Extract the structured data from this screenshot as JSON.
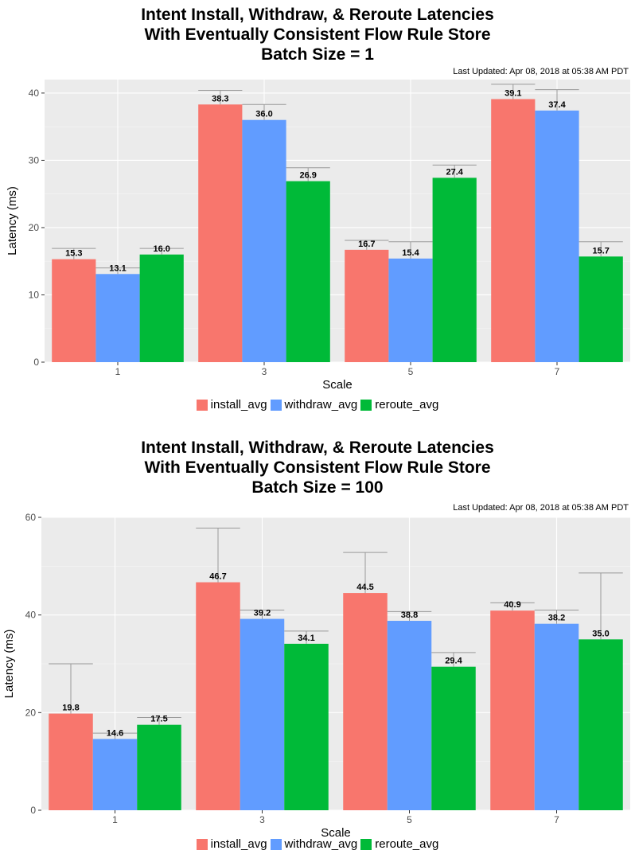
{
  "chart_data": [
    {
      "type": "bar",
      "title_lines": [
        "Intent Install, Withdraw, & Reroute Latencies",
        "With Eventually Consistent Flow Rule Store",
        "Batch Size = 1"
      ],
      "subtitle": "Last Updated: Apr 08, 2018 at 05:38 AM PDT",
      "xlabel": "Scale",
      "ylabel": "Latency (ms)",
      "ylim": [
        0,
        42
      ],
      "yticks": [
        0,
        10,
        20,
        30,
        40
      ],
      "categories": [
        "1",
        "3",
        "5",
        "7"
      ],
      "series": [
        {
          "name": "install_avg",
          "color": "#F8766D",
          "values": [
            15.3,
            38.3,
            16.7,
            39.1
          ],
          "labels": [
            "15.3",
            "38.3",
            "16.7",
            "39.1"
          ],
          "err_high": [
            16.9,
            40.4,
            18.1,
            41.3
          ]
        },
        {
          "name": "withdraw_avg",
          "color": "#619CFF",
          "values": [
            13.1,
            36.0,
            15.4,
            37.4
          ],
          "labels": [
            "13.1",
            "36.0",
            "15.4",
            "37.4"
          ],
          "err_high": [
            14.0,
            38.3,
            17.9,
            40.5
          ]
        },
        {
          "name": "reroute_avg",
          "color": "#00BA38",
          "values": [
            16.0,
            26.9,
            27.4,
            15.7
          ],
          "labels": [
            "16.0",
            "26.9",
            "27.4",
            "15.7"
          ],
          "err_high": [
            16.9,
            28.9,
            29.3,
            17.9
          ]
        }
      ],
      "grid": true,
      "legend_position": "bottom"
    },
    {
      "type": "bar",
      "title_lines": [
        "Intent Install, Withdraw, & Reroute Latencies",
        "With Eventually Consistent Flow Rule Store",
        "Batch Size = 100"
      ],
      "subtitle": "Last Updated: Apr 08, 2018 at 05:38 AM PDT",
      "xlabel": "Scale",
      "ylabel": "Latency (ms)",
      "ylim": [
        0,
        60
      ],
      "yticks": [
        0,
        20,
        40,
        60
      ],
      "categories": [
        "1",
        "3",
        "5",
        "7"
      ],
      "series": [
        {
          "name": "install_avg",
          "color": "#F8766D",
          "values": [
            19.8,
            46.7,
            44.5,
            40.9
          ],
          "labels": [
            "19.8",
            "46.7",
            "44.5",
            "40.9"
          ],
          "err_high": [
            30.0,
            57.8,
            52.8,
            42.5
          ]
        },
        {
          "name": "withdraw_avg",
          "color": "#619CFF",
          "values": [
            14.6,
            39.2,
            38.8,
            38.2
          ],
          "labels": [
            "14.6",
            "39.2",
            "38.8",
            "38.2"
          ],
          "err_high": [
            15.8,
            41.0,
            40.7,
            41.0
          ]
        },
        {
          "name": "reroute_avg",
          "color": "#00BA38",
          "values": [
            17.5,
            34.1,
            29.4,
            35.0
          ],
          "labels": [
            "17.5",
            "34.1",
            "29.4",
            "35.0"
          ],
          "err_high": [
            19.0,
            36.7,
            32.3,
            48.6
          ]
        }
      ],
      "grid": true,
      "legend_position": "bottom"
    }
  ]
}
